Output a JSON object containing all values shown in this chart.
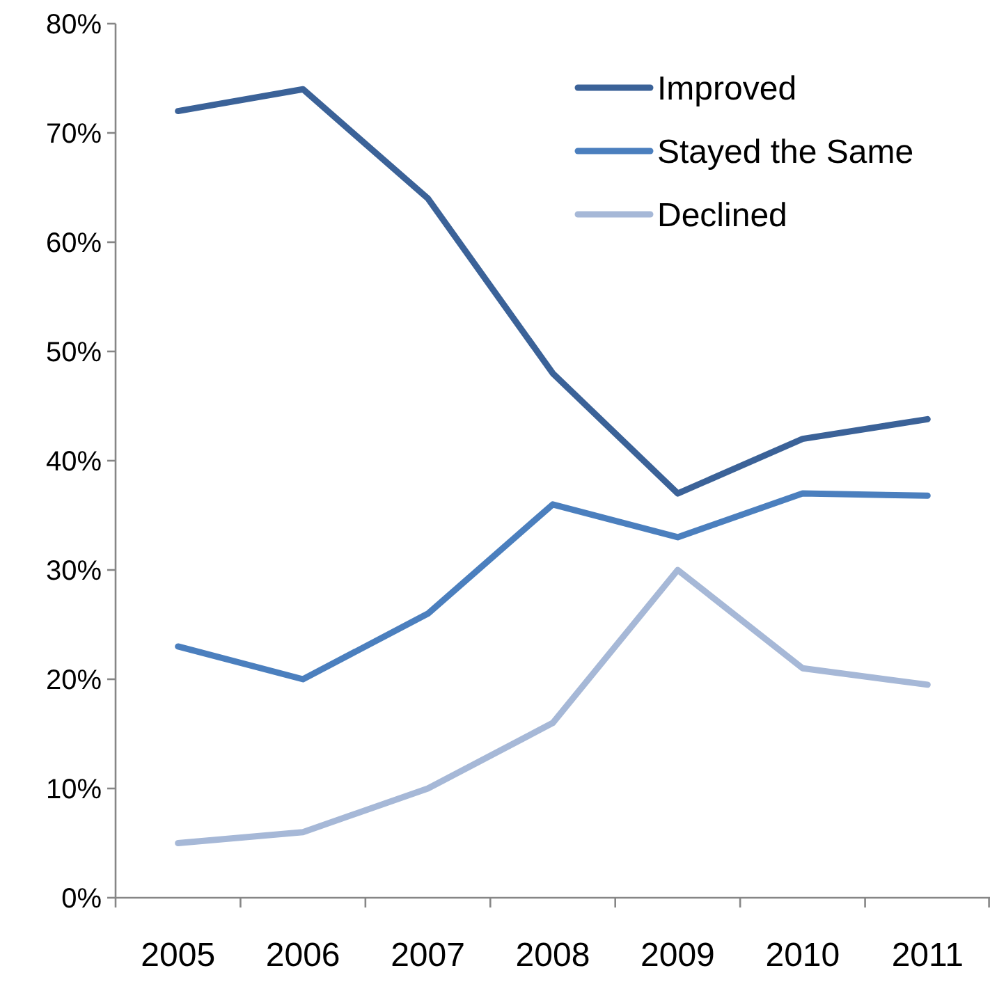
{
  "chart_data": {
    "type": "line",
    "categories": [
      "2005",
      "2006",
      "2007",
      "2008",
      "2009",
      "2010",
      "2011"
    ],
    "series": [
      {
        "name": "Improved",
        "color": "#3b6298",
        "values": [
          72,
          74,
          64,
          48,
          37,
          42,
          43.8
        ]
      },
      {
        "name": "Stayed the Same",
        "color": "#4b7fbe",
        "values": [
          23,
          20,
          26,
          36,
          33,
          37,
          36.8
        ]
      },
      {
        "name": "Declined",
        "color": "#a6b8d7",
        "values": [
          5,
          6,
          10,
          16,
          30,
          21,
          19.5
        ]
      }
    ],
    "ylim": [
      0,
      80
    ],
    "yticks": [
      {
        "value": 0,
        "label": "0%"
      },
      {
        "value": 10,
        "label": "10%"
      },
      {
        "value": 20,
        "label": "20%"
      },
      {
        "value": 30,
        "label": "30%"
      },
      {
        "value": 40,
        "label": "40%"
      },
      {
        "value": 50,
        "label": "50%"
      },
      {
        "value": 60,
        "label": "60%"
      },
      {
        "value": 70,
        "label": "70%"
      },
      {
        "value": 80,
        "label": "80%"
      }
    ],
    "grid": false,
    "legend": "top right",
    "marker": "none",
    "line_style": "solid"
  }
}
